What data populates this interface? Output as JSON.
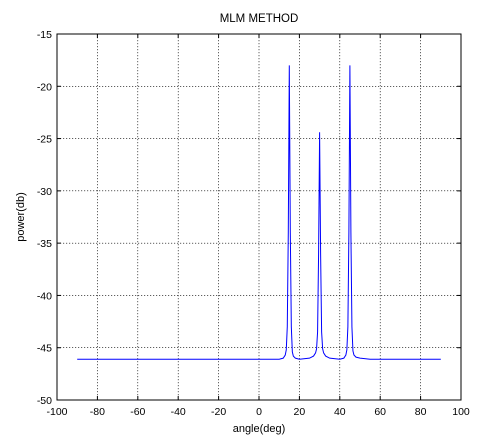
{
  "chart_data": {
    "type": "line",
    "title": "MLM METHOD",
    "xlabel": "angle(deg)",
    "ylabel": "power(db)",
    "xlim": [
      -100,
      100
    ],
    "ylim": [
      -50,
      -15
    ],
    "xticks": [
      -100,
      -80,
      -60,
      -40,
      -20,
      0,
      20,
      40,
      60,
      80,
      100
    ],
    "yticks": [
      -15,
      -20,
      -25,
      -30,
      -35,
      -40,
      -45,
      -50
    ],
    "grid": true,
    "series": [
      {
        "color": "#0000ff",
        "x": [
          -90,
          10,
          12,
          13,
          13.5,
          14,
          14.5,
          15,
          15.5,
          16,
          16.5,
          17,
          18,
          20,
          25,
          27,
          28,
          28.5,
          29,
          29.5,
          30,
          30.5,
          31,
          31.5,
          32,
          33,
          35,
          40,
          42,
          43,
          43.5,
          44,
          44.5,
          45,
          45.5,
          46,
          46.5,
          47,
          48,
          50,
          55,
          90
        ],
        "y": [
          -46.1,
          -46.1,
          -46,
          -45.7,
          -45.2,
          -43,
          -34,
          -18,
          -34,
          -43,
          -45.4,
          -45.8,
          -46,
          -46.1,
          -46,
          -45.8,
          -45.5,
          -45.1,
          -43.5,
          -36,
          -24.4,
          -36,
          -43.5,
          -45.1,
          -45.5,
          -45.8,
          -46,
          -46.1,
          -46,
          -45.7,
          -45.2,
          -43,
          -34,
          -18,
          -34,
          -43,
          -45.3,
          -45.7,
          -45.9,
          -46,
          -46.1,
          -46.1
        ]
      }
    ]
  }
}
